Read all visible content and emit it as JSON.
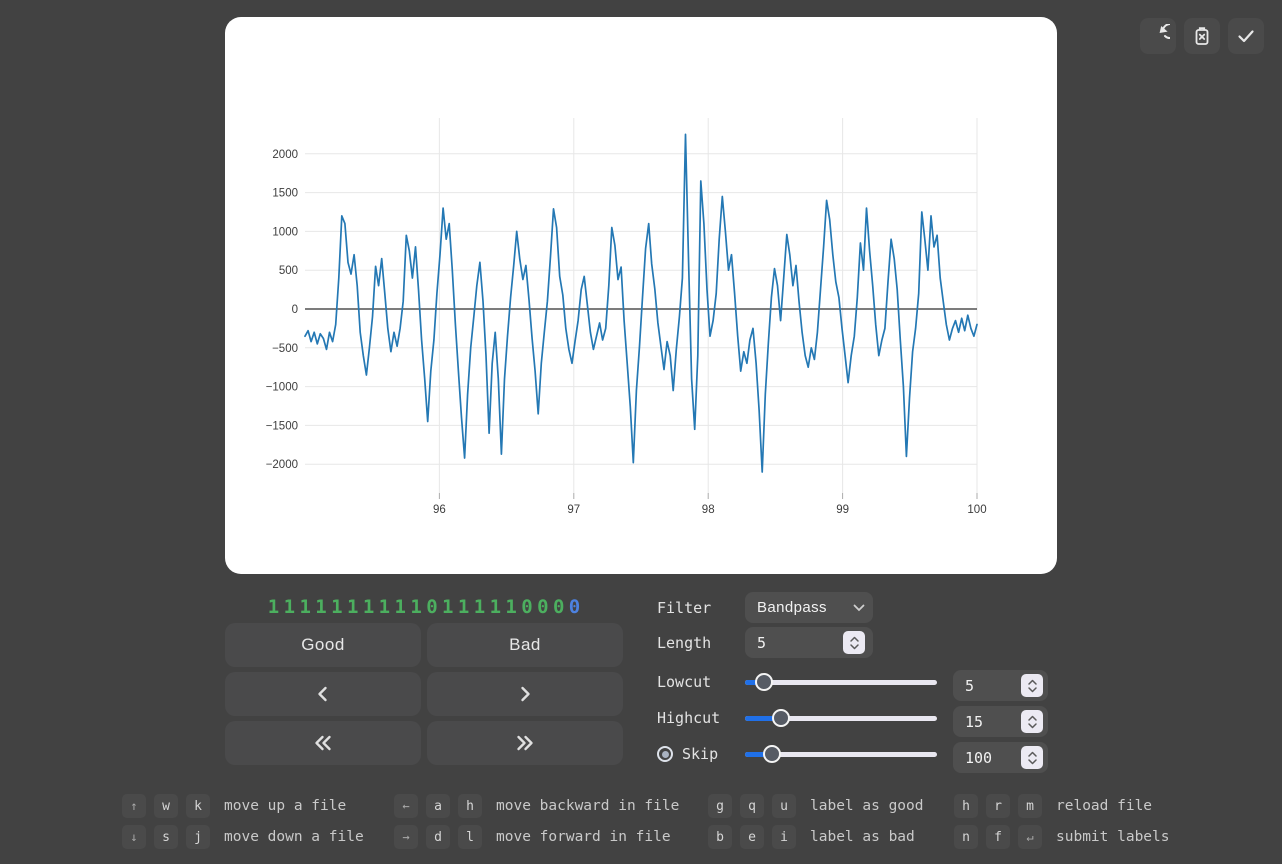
{
  "toolbar": {
    "buttons": [
      {
        "name": "refresh"
      },
      {
        "name": "discard"
      },
      {
        "name": "confirm"
      }
    ]
  },
  "labels_row": {
    "digits": [
      "1",
      "1",
      "1",
      "1",
      "1",
      "1",
      "1",
      "1",
      "1",
      "1",
      "0",
      "1",
      "1",
      "1",
      "1",
      "1",
      "0",
      "0",
      "0",
      "0"
    ],
    "current_index": 19,
    "good_color": "#4caf5f",
    "current_color": "#4d82e0"
  },
  "actions": {
    "good": "Good",
    "bad": "Bad"
  },
  "controls": {
    "filter": {
      "label": "Filter",
      "value": "Bandpass"
    },
    "length": {
      "label": "Length",
      "value": "5"
    },
    "lowcut": {
      "label": "Lowcut",
      "value": "5",
      "fraction": 0.1
    },
    "highcut": {
      "label": "Highcut",
      "value": "15",
      "fraction": 0.19
    },
    "skip": {
      "label": "Skip",
      "value": "100",
      "fraction": 0.14,
      "radio_selected": true
    }
  },
  "shortcuts": [
    {
      "keys": [
        "↑",
        "w",
        "k"
      ],
      "desc": "move up a file"
    },
    {
      "keys": [
        "←",
        "a",
        "h"
      ],
      "desc": "move backward in file"
    },
    {
      "keys": [
        "g",
        "q",
        "u"
      ],
      "desc": "label as good"
    },
    {
      "keys": [
        "h",
        "r",
        "m"
      ],
      "desc": "reload file"
    },
    {
      "keys": [
        "↓",
        "s",
        "j"
      ],
      "desc": "move down a file"
    },
    {
      "keys": [
        "→",
        "d",
        "l"
      ],
      "desc": "move forward in file"
    },
    {
      "keys": [
        "b",
        "e",
        "i"
      ],
      "desc": "label as bad"
    },
    {
      "keys": [
        "n",
        "f",
        "↵"
      ],
      "desc": "submit labels"
    }
  ],
  "chart_data": {
    "type": "line",
    "title": "",
    "xlabel": "",
    "ylabel": "",
    "x_start": 95,
    "x_end": 100,
    "xticks": [
      96,
      97,
      98,
      99,
      100
    ],
    "yticks": [
      -2000,
      -1500,
      -1000,
      -500,
      0,
      500,
      1000,
      1500,
      2000
    ],
    "ylim": [
      -2370,
      2460
    ],
    "grid": true,
    "legend": "none",
    "line_color": "#2478b4",
    "values": [
      -350,
      -280,
      -420,
      -300,
      -450,
      -320,
      -380,
      -520,
      -300,
      -420,
      -200,
      400,
      1200,
      1100,
      600,
      450,
      700,
      300,
      -300,
      -600,
      -850,
      -500,
      -100,
      550,
      300,
      650,
      200,
      -250,
      -550,
      -300,
      -480,
      -250,
      100,
      950,
      750,
      400,
      800,
      250,
      -400,
      -900,
      -1450,
      -800,
      -400,
      200,
      700,
      1300,
      900,
      1100,
      500,
      -200,
      -800,
      -1400,
      -1920,
      -1100,
      -500,
      -100,
      300,
      600,
      100,
      -600,
      -1600,
      -700,
      -300,
      -900,
      -1870,
      -900,
      -350,
      150,
      560,
      1000,
      640,
      380,
      560,
      120,
      -380,
      -800,
      -1350,
      -700,
      -300,
      100,
      680,
      1290,
      1050,
      420,
      180,
      -250,
      -520,
      -700,
      -420,
      -150,
      250,
      420,
      60,
      -300,
      -520,
      -350,
      -180,
      -400,
      -250,
      300,
      1050,
      820,
      380,
      540,
      -150,
      -700,
      -1260,
      -1980,
      -1050,
      -480,
      150,
      780,
      1100,
      580,
      260,
      -180,
      -480,
      -780,
      -420,
      -600,
      -1050,
      -520,
      -100,
      400,
      2250,
      600,
      -900,
      -1550,
      -600,
      1650,
      1100,
      250,
      -350,
      -150,
      200,
      900,
      1450,
      1000,
      500,
      700,
      200,
      -350,
      -800,
      -550,
      -700,
      -400,
      -250,
      -700,
      -1300,
      -2100,
      -1100,
      -450,
      150,
      520,
      300,
      -150,
      400,
      960,
      700,
      300,
      560,
      100,
      -300,
      -600,
      -750,
      -500,
      -650,
      -300,
      250,
      800,
      1400,
      1150,
      700,
      350,
      150,
      -250,
      -600,
      -950,
      -600,
      -350,
      150,
      850,
      500,
      1300,
      750,
      300,
      -200,
      -600,
      -400,
      -250,
      350,
      900,
      650,
      250,
      -400,
      -1000,
      -1900,
      -1150,
      -550,
      -250,
      200,
      1250,
      900,
      500,
      1200,
      800,
      950,
      400,
      100,
      -200,
      -400,
      -250,
      -150,
      -300,
      -120,
      -280,
      -80,
      -250,
      -350,
      -200
    ]
  }
}
